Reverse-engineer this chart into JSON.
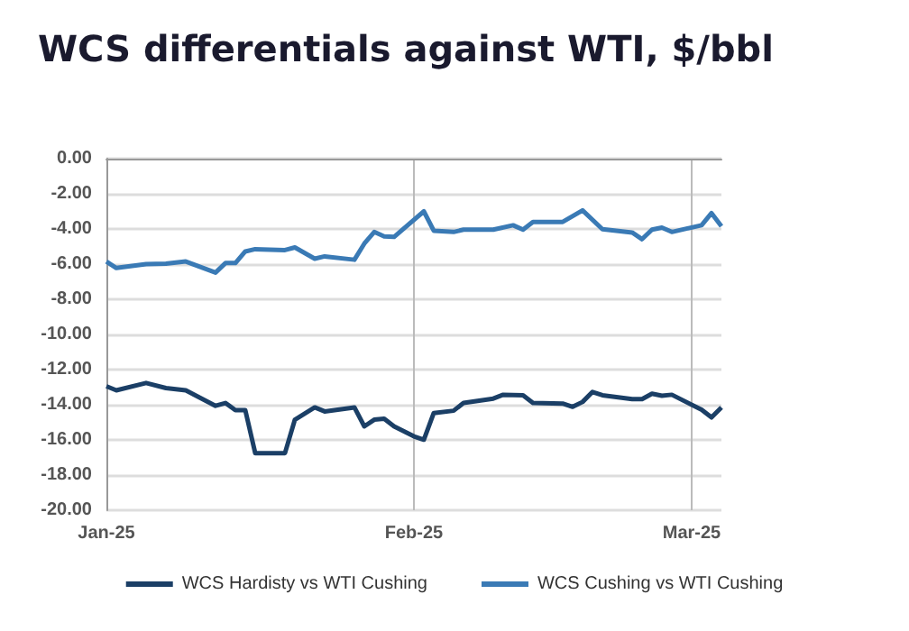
{
  "chart_data": {
    "type": "line",
    "title": "WCS differentials against WTI, $/bbl",
    "series": [
      {
        "name": "WCS Hardisty vs WTI Cushing",
        "color": "#1b3f66",
        "x": [
          "2025-01-01",
          "2025-01-02",
          "2025-01-05",
          "2025-01-07",
          "2025-01-09",
          "2025-01-12",
          "2025-01-13",
          "2025-01-14",
          "2025-01-15",
          "2025-01-16",
          "2025-01-19",
          "2025-01-20",
          "2025-01-22",
          "2025-01-23",
          "2025-01-26",
          "2025-01-27",
          "2025-01-28",
          "2025-01-29",
          "2025-01-30",
          "2025-02-01",
          "2025-02-02",
          "2025-02-03",
          "2025-02-05",
          "2025-02-06",
          "2025-02-09",
          "2025-02-10",
          "2025-02-12",
          "2025-02-13",
          "2025-02-16",
          "2025-02-17",
          "2025-02-18",
          "2025-02-19",
          "2025-02-20",
          "2025-02-23",
          "2025-02-24",
          "2025-02-25",
          "2025-02-26",
          "2025-02-27",
          "2025-03-02",
          "2025-03-03",
          "2025-03-04"
        ],
        "values": [
          -12.95,
          -13.18,
          -12.76,
          -13.05,
          -13.18,
          -14.06,
          -13.9,
          -14.31,
          -14.31,
          -16.75,
          -16.75,
          -14.85,
          -14.15,
          -14.38,
          -14.15,
          -15.23,
          -14.85,
          -14.79,
          -15.23,
          -15.8,
          -15.99,
          -14.47,
          -14.34,
          -13.9,
          -13.65,
          -13.43,
          -13.46,
          -13.9,
          -13.93,
          -14.12,
          -13.84,
          -13.27,
          -13.46,
          -13.68,
          -13.68,
          -13.37,
          -13.49,
          -13.43,
          -14.28,
          -14.72,
          -14.15
        ]
      },
      {
        "name": "WCS Cushing vs WTI Cushing",
        "color": "#3a7ab5",
        "x": [
          "2025-01-01",
          "2025-01-02",
          "2025-01-05",
          "2025-01-07",
          "2025-01-09",
          "2025-01-12",
          "2025-01-13",
          "2025-01-14",
          "2025-01-15",
          "2025-01-16",
          "2025-01-19",
          "2025-01-20",
          "2025-01-22",
          "2025-01-23",
          "2025-01-26",
          "2025-01-27",
          "2025-01-28",
          "2025-01-29",
          "2025-01-30",
          "2025-02-02",
          "2025-02-03",
          "2025-02-05",
          "2025-02-06",
          "2025-02-09",
          "2025-02-11",
          "2025-02-12",
          "2025-02-13",
          "2025-02-16",
          "2025-02-18",
          "2025-02-20",
          "2025-02-23",
          "2025-02-24",
          "2025-02-25",
          "2025-02-26",
          "2025-02-27",
          "2025-03-02",
          "2025-03-03",
          "2025-03-04"
        ],
        "values": [
          -5.85,
          -6.22,
          -6.0,
          -5.97,
          -5.85,
          -6.48,
          -5.94,
          -5.94,
          -5.28,
          -5.15,
          -5.2,
          -5.05,
          -5.69,
          -5.56,
          -5.75,
          -4.83,
          -4.17,
          -4.42,
          -4.45,
          -3.0,
          -4.1,
          -4.17,
          -4.04,
          -4.04,
          -3.79,
          -4.04,
          -3.6,
          -3.6,
          -2.94,
          -4.01,
          -4.2,
          -4.58,
          -4.04,
          -3.92,
          -4.17,
          -3.79,
          -3.1,
          -3.85
        ]
      }
    ],
    "xlim": [
      "2025-01-01",
      "2025-03-04"
    ],
    "xticks": [
      {
        "value": "2025-01-01",
        "label": "Jan-25"
      },
      {
        "value": "2025-02-01",
        "label": "Feb-25"
      },
      {
        "value": "2025-03-01",
        "label": "Mar-25"
      }
    ],
    "ylim": [
      -20,
      0
    ],
    "yticks": [
      {
        "value": -20,
        "label": "-20.00"
      },
      {
        "value": -18,
        "label": "-18.00"
      },
      {
        "value": -16,
        "label": "-16.00"
      },
      {
        "value": -14,
        "label": "-14.00"
      },
      {
        "value": -12,
        "label": "-12.00"
      },
      {
        "value": -10,
        "label": "-10.00"
      },
      {
        "value": -8,
        "label": "-8.00"
      },
      {
        "value": -6,
        "label": "-6.00"
      },
      {
        "value": -4,
        "label": "-4.00"
      },
      {
        "value": -2,
        "label": "-2.00"
      },
      {
        "value": 0,
        "label": "0.00"
      }
    ],
    "grid": true,
    "legend": "bottom",
    "marker": "none",
    "line_style": "solid"
  }
}
